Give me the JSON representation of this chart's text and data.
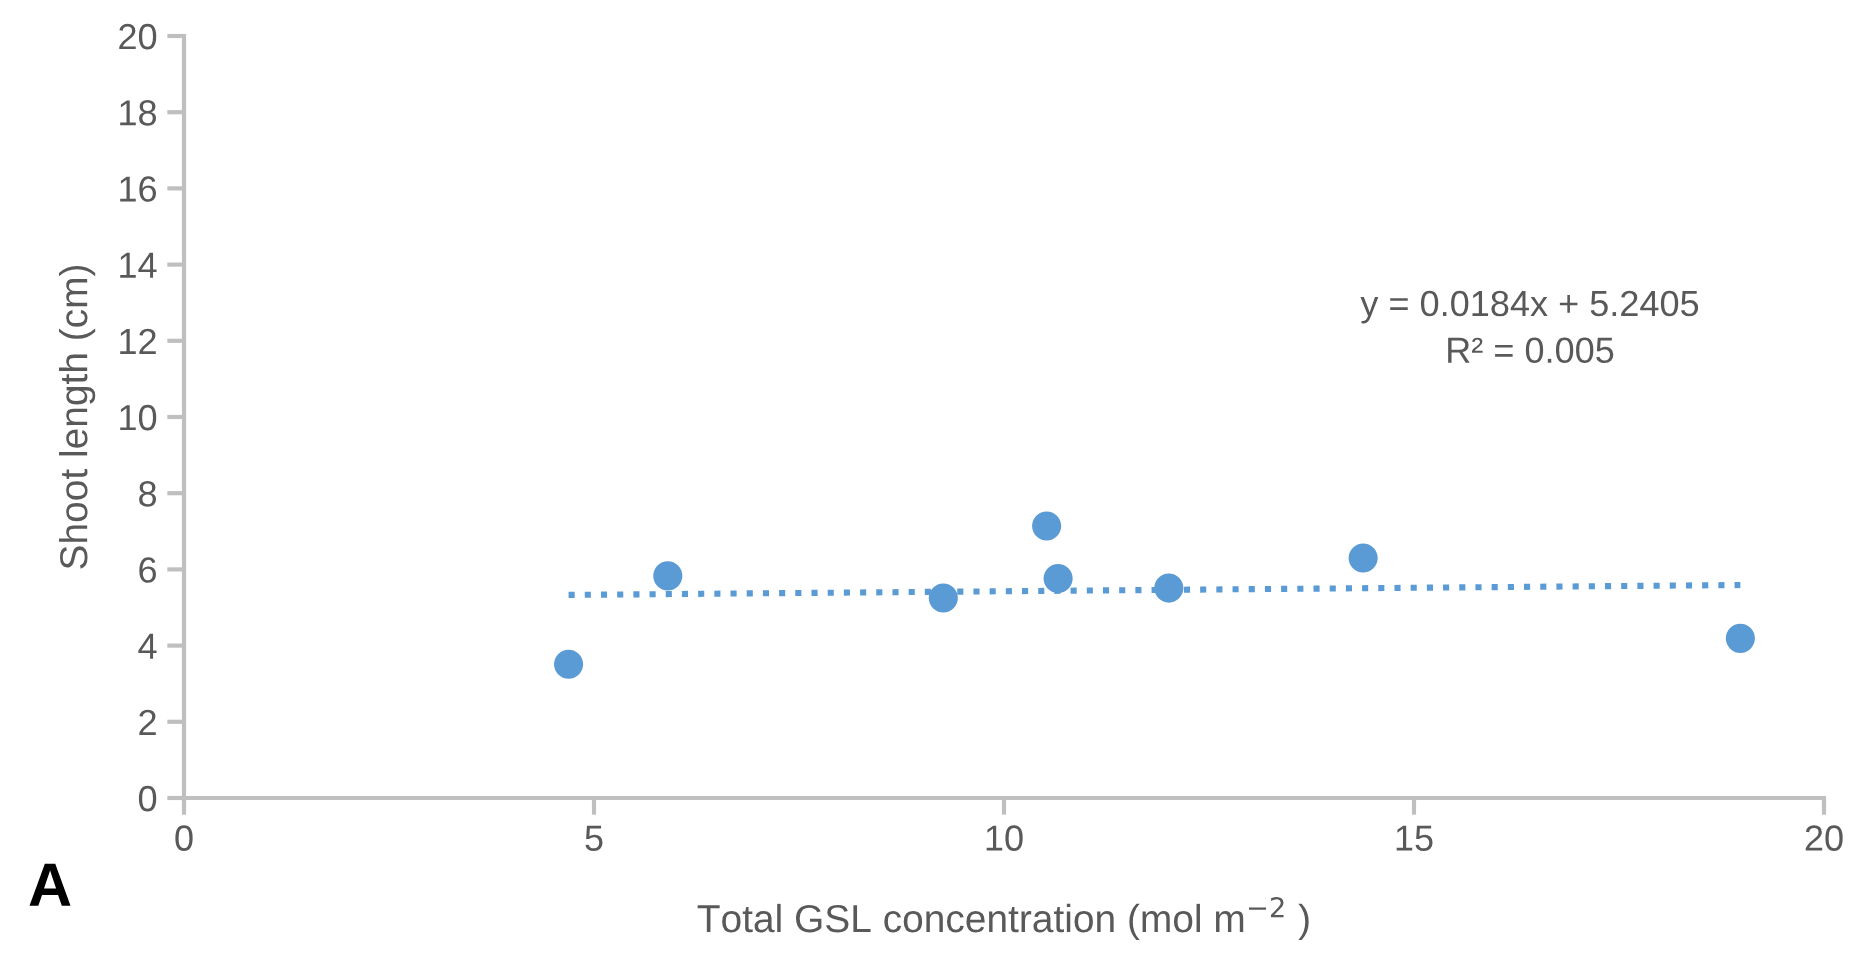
{
  "chart_data": {
    "type": "scatter",
    "xlabel": "Total GSL concentration (mol m$^{−2}$ )",
    "ylabel": "Shoot length (cm)",
    "xlim": [
      0,
      20
    ],
    "xticks": [
      0,
      5,
      10,
      15,
      20
    ],
    "ylim": [
      0,
      20
    ],
    "yticks": [
      0,
      2,
      4,
      6,
      8,
      10,
      12,
      14,
      16,
      18,
      20
    ],
    "grid": false,
    "legend": false,
    "series": [
      {
        "color": "#5b9bd5",
        "marker": "circle",
        "x": [
          4.69,
          5.9,
          9.26,
          10.52,
          10.66,
          12.01,
          14.38,
          18.98
        ],
        "values": [
          3.51,
          5.83,
          5.25,
          7.14,
          5.76,
          5.51,
          6.3,
          4.19
        ]
      },
      {
        "type": "line",
        "color": "#5b9bd5",
        "line_style": "dotted",
        "marker": "none",
        "x": [
          4.69,
          18.98
        ],
        "values": [
          5.33,
          5.59
        ]
      }
    ],
    "annotations": [
      "y = 0.0184x + 5.2405\nR² = 0.005",
      "A"
    ]
  }
}
